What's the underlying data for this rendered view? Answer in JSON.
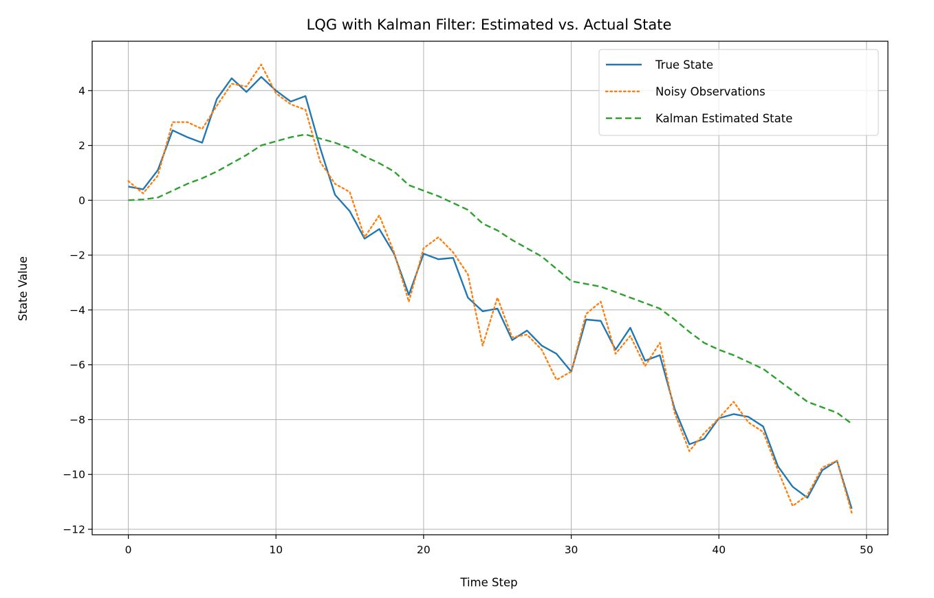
{
  "chart_data": {
    "type": "line",
    "title": "LQG with Kalman Filter: Estimated vs. Actual State",
    "xlabel": "Time Step",
    "ylabel": "State Value",
    "xlim": [
      -2.45,
      51.45
    ],
    "ylim": [
      -12.2,
      5.8
    ],
    "xticks": [
      0,
      10,
      20,
      30,
      40,
      50
    ],
    "xtick_labels": [
      "0",
      "10",
      "20",
      "30",
      "40",
      "50"
    ],
    "yticks": [
      -12,
      -10,
      -8,
      -6,
      -4,
      -2,
      0,
      2,
      4
    ],
    "ytick_labels": [
      "−12",
      "−10",
      "−8",
      "−6",
      "−4",
      "−2",
      "0",
      "2",
      "4"
    ],
    "grid": true,
    "legend_position": "top-right",
    "x": [
      0,
      1,
      2,
      3,
      4,
      5,
      6,
      7,
      8,
      9,
      10,
      11,
      12,
      13,
      14,
      15,
      16,
      17,
      18,
      19,
      20,
      21,
      22,
      23,
      24,
      25,
      26,
      27,
      28,
      29,
      30,
      31,
      32,
      33,
      34,
      35,
      36,
      37,
      38,
      39,
      40,
      41,
      42,
      43,
      44,
      45,
      46,
      47,
      48,
      49
    ],
    "series": [
      {
        "name": "True State",
        "color": "#1f77b4",
        "style": "solid",
        "values": [
          0.5,
          0.4,
          1.1,
          2.55,
          2.3,
          2.1,
          3.7,
          4.45,
          3.95,
          4.5,
          4.0,
          3.6,
          3.8,
          1.9,
          0.2,
          -0.4,
          -1.4,
          -1.05,
          -1.95,
          -3.45,
          -1.95,
          -2.15,
          -2.1,
          -3.55,
          -4.05,
          -3.95,
          -5.1,
          -4.75,
          -5.3,
          -5.6,
          -6.25,
          -4.35,
          -4.4,
          -5.45,
          -4.65,
          -5.85,
          -5.65,
          -7.6,
          -8.9,
          -8.7,
          -7.95,
          -7.8,
          -7.9,
          -8.25,
          -9.7,
          -10.45,
          -10.85,
          -9.85,
          -9.5,
          -11.25
        ]
      },
      {
        "name": "Noisy Observations",
        "color": "#ff7f0e",
        "style": "dotted",
        "values": [
          0.7,
          0.25,
          0.9,
          2.85,
          2.85,
          2.6,
          3.45,
          4.25,
          4.15,
          4.95,
          3.9,
          3.5,
          3.3,
          1.4,
          0.6,
          0.3,
          -1.35,
          -0.55,
          -1.9,
          -3.7,
          -1.75,
          -1.35,
          -1.9,
          -2.7,
          -5.3,
          -3.55,
          -5.0,
          -4.9,
          -5.45,
          -6.55,
          -6.25,
          -4.15,
          -3.7,
          -5.6,
          -4.95,
          -6.05,
          -5.2,
          -7.75,
          -9.15,
          -8.5,
          -7.95,
          -7.35,
          -8.1,
          -8.45,
          -9.85,
          -11.15,
          -10.75,
          -9.75,
          -9.5,
          -11.4
        ]
      },
      {
        "name": "Kalman Estimated State",
        "color": "#2ca02c",
        "style": "dashed",
        "values": [
          0.0,
          0.03,
          0.1,
          0.35,
          0.6,
          0.8,
          1.05,
          1.35,
          1.65,
          2.0,
          2.15,
          2.3,
          2.4,
          2.25,
          2.1,
          1.9,
          1.6,
          1.35,
          1.05,
          0.55,
          0.35,
          0.15,
          -0.1,
          -0.35,
          -0.85,
          -1.1,
          -1.45,
          -1.75,
          -2.05,
          -2.5,
          -2.95,
          -3.05,
          -3.15,
          -3.35,
          -3.55,
          -3.75,
          -3.95,
          -4.35,
          -4.8,
          -5.2,
          -5.45,
          -5.65,
          -5.9,
          -6.15,
          -6.55,
          -6.95,
          -7.35,
          -7.55,
          -7.75,
          -8.15
        ]
      }
    ]
  }
}
